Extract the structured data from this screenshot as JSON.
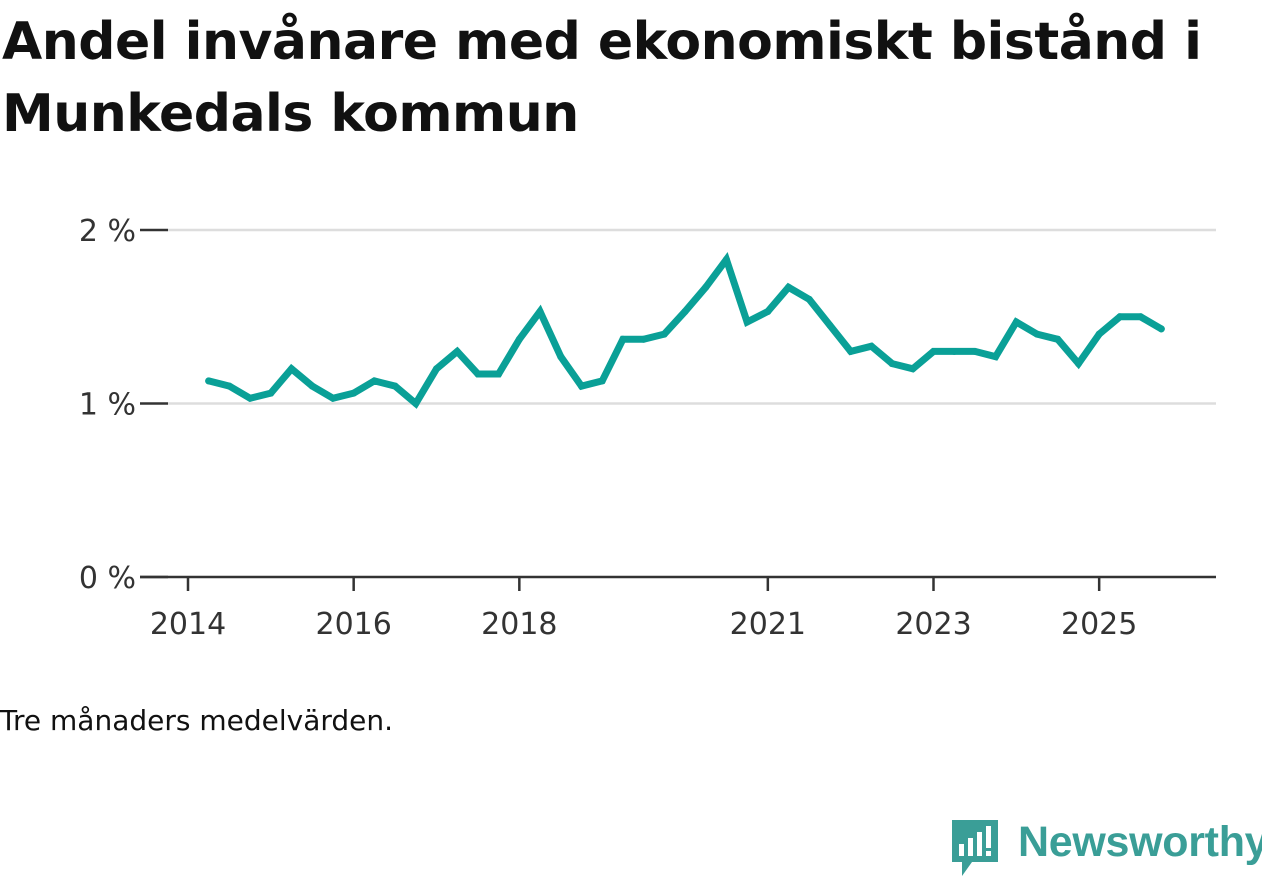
{
  "title": "Andel invånare med ekonomiskt bistånd i Munkedals kommun",
  "note": "Tre månaders medelvärden.",
  "brand": {
    "name": "Newsworthy",
    "icon": "newsworthy-logo-icon",
    "color": "#3a9e97"
  },
  "colors": {
    "line": "#0aa097",
    "grid": "#dddddd",
    "axis": "#333333"
  },
  "chart_data": {
    "type": "line",
    "title": "Andel invånare med ekonomiskt bistånd i Munkedals kommun",
    "xlabel": "",
    "ylabel": "",
    "ylim": [
      0,
      2
    ],
    "xlim": [
      2014.0,
      2026.9
    ],
    "y_ticks": [
      {
        "value": 0,
        "label": "0 %"
      },
      {
        "value": 1,
        "label": "1 %"
      },
      {
        "value": 2,
        "label": "2 %"
      }
    ],
    "x_ticks": [
      {
        "value": 2014,
        "label": "2014"
      },
      {
        "value": 2016,
        "label": "2016"
      },
      {
        "value": 2018,
        "label": "2018"
      },
      {
        "value": 2021,
        "label": "2021"
      },
      {
        "value": 2023,
        "label": "2023"
      },
      {
        "value": 2025,
        "label": "2025"
      }
    ],
    "grid": true,
    "series": [
      {
        "name": "Andel invånare med ekonomiskt bistånd",
        "x": [
          2014.25,
          2014.5,
          2014.75,
          2015.0,
          2015.25,
          2015.5,
          2015.75,
          2016.0,
          2016.25,
          2016.5,
          2016.75,
          2017.0,
          2017.25,
          2017.5,
          2017.75,
          2018.0,
          2018.25,
          2018.5,
          2018.75,
          2019.0,
          2019.25,
          2019.5,
          2019.75,
          2020.0,
          2020.25,
          2020.5,
          2020.75,
          2021.0,
          2021.25,
          2021.5,
          2021.75,
          2022.0,
          2022.25,
          2022.5,
          2022.75,
          2023.0,
          2023.25,
          2023.5,
          2023.75,
          2024.0,
          2024.25,
          2024.5,
          2024.75,
          2025.0,
          2025.25,
          2025.5,
          2025.75
        ],
        "values": [
          1.13,
          1.1,
          1.03,
          1.06,
          1.2,
          1.1,
          1.03,
          1.06,
          1.13,
          1.1,
          1.0,
          1.2,
          1.3,
          1.17,
          1.17,
          1.37,
          1.53,
          1.27,
          1.1,
          1.13,
          1.37,
          1.37,
          1.4,
          1.53,
          1.67,
          1.83,
          1.47,
          1.53,
          1.67,
          1.6,
          1.45,
          1.3,
          1.33,
          1.23,
          1.2,
          1.3,
          1.3,
          1.3,
          1.27,
          1.47,
          1.4,
          1.37,
          1.23,
          1.4,
          1.5,
          1.5,
          1.43
        ]
      }
    ]
  }
}
